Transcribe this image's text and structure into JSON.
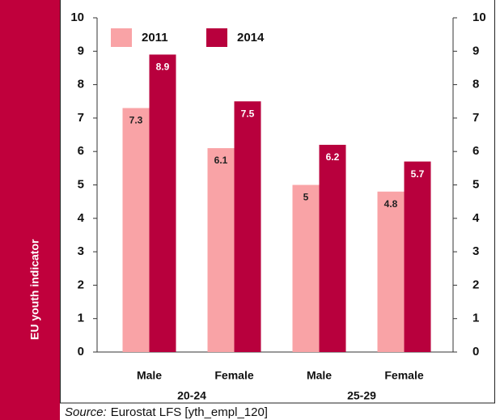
{
  "chart_data": {
    "type": "bar",
    "side_label": "EU youth indicator",
    "categories": [
      "Male",
      "Female",
      "Male",
      "Female"
    ],
    "group_labels": [
      "20-24",
      "25-29"
    ],
    "series": [
      {
        "name": "2011",
        "color": "#f9a3a6",
        "values": [
          7.3,
          6.1,
          5,
          4.8
        ]
      },
      {
        "name": "2014",
        "color": "#b8003d",
        "values": [
          8.9,
          7.5,
          6.2,
          5.7
        ]
      }
    ],
    "ylim": [
      0,
      10
    ],
    "yticks": [
      0,
      1,
      2,
      3,
      4,
      5,
      6,
      7,
      8,
      9,
      10
    ],
    "y2lim": [
      0,
      10
    ],
    "y2ticks": [
      0,
      1,
      2,
      3,
      4,
      5,
      6,
      7,
      8,
      9,
      10
    ],
    "legend": "top-left",
    "source_label": "Source:",
    "source": "Eurostat LFS [yth_empl_120]"
  }
}
